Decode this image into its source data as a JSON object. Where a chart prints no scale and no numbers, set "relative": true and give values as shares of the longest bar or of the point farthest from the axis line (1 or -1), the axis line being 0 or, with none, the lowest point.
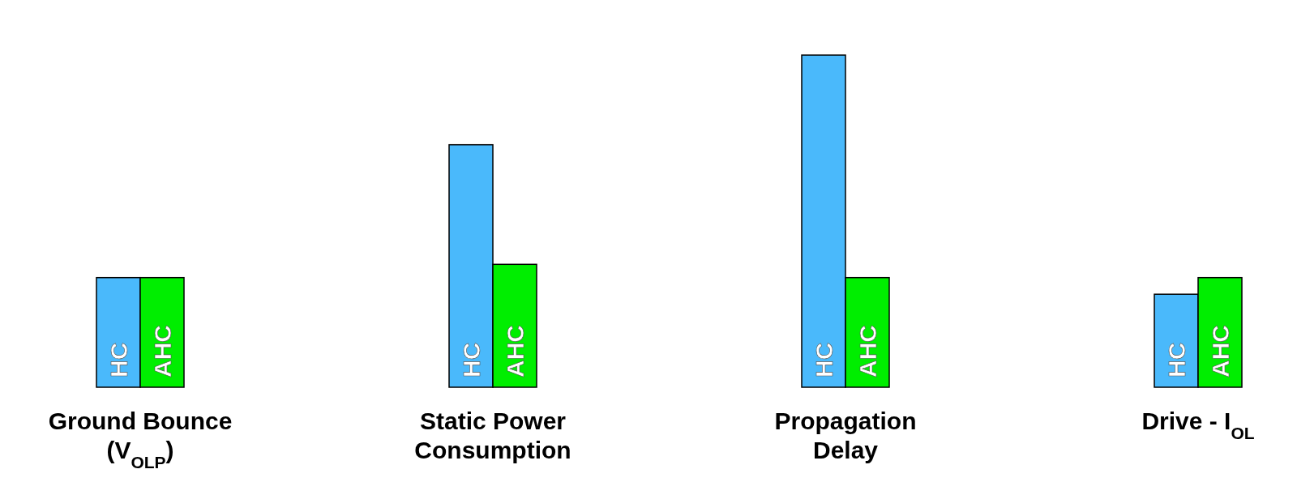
{
  "chart_data": {
    "type": "bar",
    "relative": true,
    "legend": false,
    "categories": [
      "Ground Bounce\n(V$_{OLP}$)",
      "Static Power\nConsumption",
      "Propagation\nDelay",
      "Drive - I$_{OL}$"
    ],
    "series": [
      {
        "name": "HC",
        "color": "#4ab9fb",
        "values": [
          0.33,
          0.73,
          1,
          0.28
        ]
      },
      {
        "name": "AHC",
        "color": "#00ee00",
        "values": [
          0.33,
          0.37,
          0.33,
          0.33
        ]
      }
    ]
  }
}
